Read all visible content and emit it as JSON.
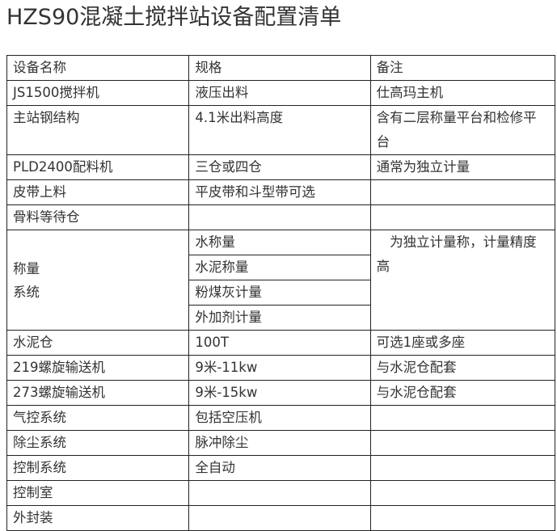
{
  "title": "HZS90混凝土搅拌站设备配置清单",
  "table": {
    "headers": [
      "设备名称",
      "规格",
      "备注"
    ],
    "rows": [
      [
        "JS1500搅拌机",
        "液压出料",
        "仕高玛主机"
      ],
      [
        "主站钢结构",
        "4.1米出料高度",
        "含有二层称量平台和检修平台"
      ],
      [
        "PLD2400配料机",
        "三仓或四仓",
        "通常为独立计量"
      ],
      [
        "皮带上料",
        "平皮带和斗型带可选",
        ""
      ],
      [
        "骨料等待仓",
        "",
        ""
      ]
    ],
    "weighing": {
      "name_line1": "称量",
      "name_line2": "系统",
      "items": [
        "水称量",
        "水泥称量",
        "粉煤灰计量",
        "外加剂计量"
      ],
      "note": "为独立计量称，计量精度高"
    },
    "rows2": [
      [
        "水泥仓",
        "100T",
        "可选1座或多座"
      ],
      [
        "219螺旋输送机",
        "9米-11kw",
        "与水泥仓配套"
      ],
      [
        "273螺旋输送机",
        "9米-15kw",
        "与水泥仓配套"
      ],
      [
        "气控系统",
        "包括空压机",
        ""
      ],
      [
        "除尘系统",
        "脉冲除尘",
        ""
      ],
      [
        "控制系统",
        "全自动",
        ""
      ],
      [
        "控制室",
        "",
        ""
      ],
      [
        "外封装",
        "",
        ""
      ]
    ]
  }
}
